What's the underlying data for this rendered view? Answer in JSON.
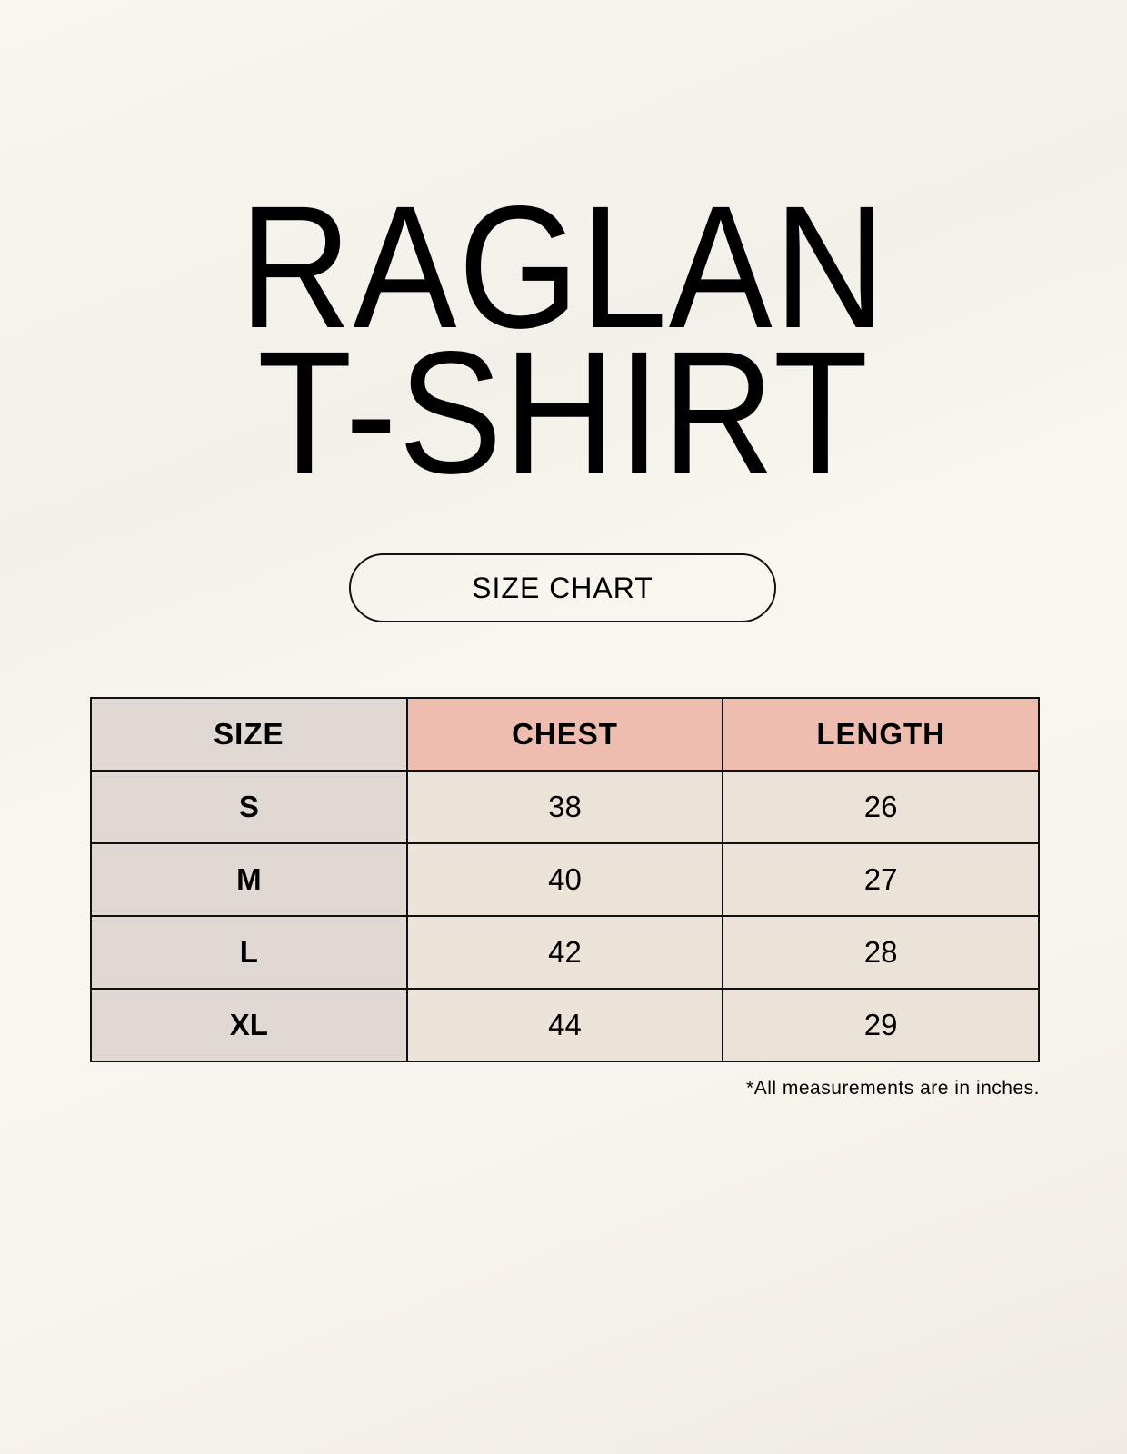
{
  "title": {
    "line1": "RAGLAN",
    "line2": "T-SHIRT"
  },
  "badge": "SIZE CHART",
  "colors": {
    "size_column": "#e0d9d3",
    "header_accent": "#efbdb0",
    "cell": "#ebe3d8",
    "border": "#111111"
  },
  "table": {
    "headers": [
      "SIZE",
      "CHEST",
      "LENGTH"
    ],
    "rows": [
      {
        "size": "S",
        "chest": "38",
        "length": "26"
      },
      {
        "size": "M",
        "chest": "40",
        "length": "27"
      },
      {
        "size": "L",
        "chest": "42",
        "length": "28"
      },
      {
        "size": "XL",
        "chest": "44",
        "length": "29"
      }
    ]
  },
  "footnote": "*All measurements are in inches."
}
